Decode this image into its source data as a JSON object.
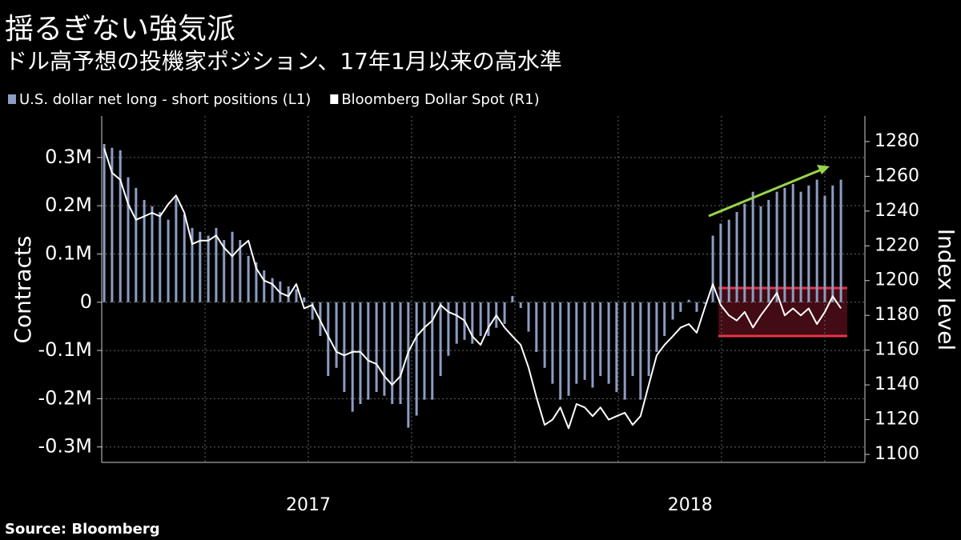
{
  "chart_data": {
    "type": "combo",
    "title": "揺るぎない強気派",
    "subtitle": "ドル高予想の投機家ポジション、17年1月以来の高水準",
    "source": "Source: Bloomberg",
    "ylabel": "Contracts",
    "y2label": "Index level",
    "x": [
      2017.006,
      2017.025,
      2017.045,
      2017.064,
      2017.083,
      2017.103,
      2017.122,
      2017.141,
      2017.161,
      2017.18,
      2017.2,
      2017.219,
      2017.238,
      2017.258,
      2017.277,
      2017.296,
      2017.316,
      2017.335,
      2017.355,
      2017.374,
      2017.393,
      2017.413,
      2017.432,
      2017.452,
      2017.471,
      2017.49,
      2017.51,
      2017.529,
      2017.548,
      2017.568,
      2017.587,
      2017.607,
      2017.626,
      2017.645,
      2017.665,
      2017.684,
      2017.703,
      2017.723,
      2017.742,
      2017.762,
      2017.781,
      2017.8,
      2017.82,
      2017.839,
      2017.859,
      2017.878,
      2017.897,
      2017.917,
      2017.936,
      2017.955,
      2017.975,
      2017.994,
      2018.014,
      2018.033,
      2018.052,
      2018.072,
      2018.091,
      2018.11,
      2018.13,
      2018.149,
      2018.169,
      2018.188,
      2018.207,
      2018.227,
      2018.246,
      2018.266,
      2018.285,
      2018.304,
      2018.324,
      2018.343,
      2018.362,
      2018.382,
      2018.401,
      2018.421,
      2018.44,
      2018.459,
      2018.479,
      2018.498,
      2018.518,
      2018.537,
      2018.556,
      2018.576,
      2018.595,
      2018.614,
      2018.634,
      2018.653,
      2018.673,
      2018.692,
      2018.711,
      2018.731,
      2018.75,
      2018.769,
      2018.789
    ],
    "series": [
      {
        "name": "U.S. dollar net long - short positions (L1)",
        "type": "bar",
        "color": "#8d9cc2",
        "values": [
          328000,
          320000,
          315000,
          259000,
          237000,
          212000,
          199000,
          187000,
          171000,
          216000,
          182000,
          154000,
          146000,
          138000,
          154000,
          129000,
          146000,
          129000,
          96000,
          83000,
          66000,
          50000,
          43000,
          33000,
          27000,
          10000,
          -36000,
          -70000,
          -153000,
          -136000,
          -186000,
          -227000,
          -211000,
          -202000,
          -186000,
          -194000,
          -211000,
          -211000,
          -260000,
          -235000,
          -202000,
          -202000,
          -153000,
          -111000,
          -86000,
          -78000,
          -86000,
          -70000,
          -70000,
          -53000,
          -45000,
          13000,
          -12000,
          -61000,
          -103000,
          -136000,
          -169000,
          -202000,
          -194000,
          -169000,
          -161000,
          -177000,
          -153000,
          -169000,
          -186000,
          -202000,
          -153000,
          -202000,
          -153000,
          -103000,
          -70000,
          -36000,
          -20000,
          5000,
          -20000,
          -3000,
          138000,
          163000,
          171000,
          187000,
          204000,
          229000,
          199000,
          212000,
          229000,
          237000,
          245000,
          229000,
          242000,
          254000,
          221000,
          242000,
          254000
        ]
      },
      {
        "name": "Bloomberg Dollar Spot (R1)",
        "type": "line",
        "axis": "y2",
        "color": "#ffffff",
        "values": [
          1276,
          1262,
          1258,
          1244,
          1235,
          1237,
          1239,
          1237,
          1244,
          1249,
          1239,
          1221,
          1223,
          1223,
          1226,
          1219,
          1214,
          1219,
          1223,
          1207,
          1200,
          1198,
          1193,
          1191,
          1198,
          1184,
          1186,
          1177,
          1168,
          1159,
          1157,
          1159,
          1159,
          1154,
          1152,
          1145,
          1140,
          1145,
          1159,
          1168,
          1173,
          1177,
          1186,
          1182,
          1180,
          1177,
          1168,
          1163,
          1173,
          1180,
          1173,
          1168,
          1163,
          1150,
          1133,
          1117,
          1120,
          1127,
          1115,
          1129,
          1127,
          1122,
          1127,
          1120,
          1122,
          1124,
          1117,
          1122,
          1140,
          1157,
          1163,
          1168,
          1173,
          1175,
          1170,
          1184,
          1198,
          1186,
          1180,
          1177,
          1182,
          1173,
          1180,
          1186,
          1193,
          1180,
          1184,
          1180,
          1184,
          1175,
          1182,
          1191,
          1184
        ]
      }
    ],
    "xlim": [
      2017,
      2018.847
    ],
    "xticks": [
      {
        "value": 2017.5,
        "label": "2017"
      },
      {
        "value": 2018.424,
        "label": "2018"
      }
    ],
    "xgridlines": [
      2017.25,
      2017.5,
      2017.75,
      2018,
      2018.25,
      2018.5,
      2018.75
    ],
    "ylim": [
      -332000,
      386000
    ],
    "yticks": [
      {
        "value": -300000,
        "label": "-0.3M"
      },
      {
        "value": -200000,
        "label": "-0.2M"
      },
      {
        "value": -100000,
        "label": "-0.1M"
      },
      0,
      {
        "value": 100000,
        "label": "0.1M"
      },
      {
        "value": 200000,
        "label": "0.2M"
      },
      {
        "value": 300000,
        "label": "0.3M"
      }
    ],
    "y2lim": [
      1095.4,
      1294.7
    ],
    "y2ticks": [
      1100,
      1120,
      1140,
      1160,
      1180,
      1200,
      1220,
      1240,
      1260,
      1280
    ],
    "grid": true
  }
}
